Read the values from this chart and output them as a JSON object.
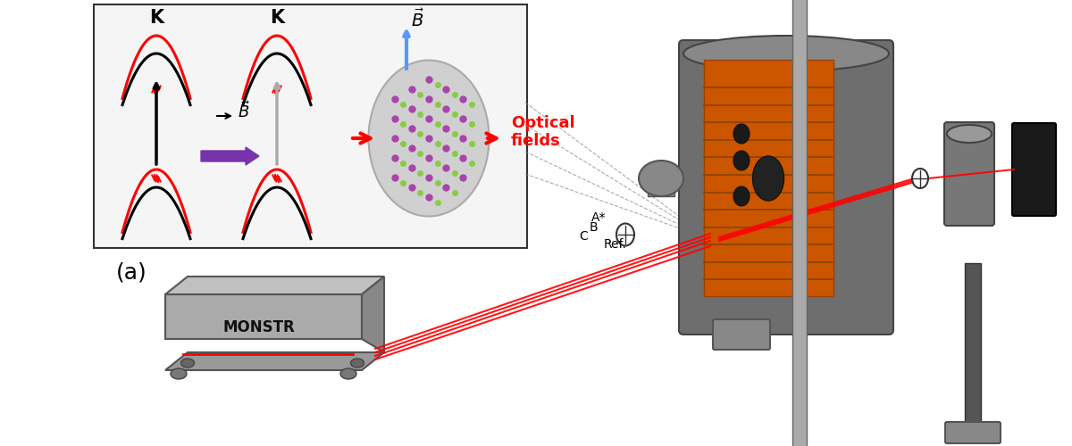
{
  "background_color": "#ffffff",
  "inset_border_color": "#333333",
  "label_a": "(a)",
  "label_monstr": "MONSTR",
  "label_optical_fields": "Optical\nfields",
  "labels_beams": [
    "A*",
    "B",
    "C",
    "Ref."
  ],
  "beam_color": "#cc0000",
  "arrow_color_blue": "#4499ff",
  "arrow_color_purple": "#7733aa",
  "arrow_color_black": "#111111",
  "arrow_color_gray": "#aaaaaa",
  "optical_fields_color": "#cc0000",
  "dashed_line_color": "#888888",
  "magnet_outer_color": "#666666",
  "magnet_inner_color": "#cc5500",
  "monstr_color": "#aaaaaa",
  "purple_arrow": "#7733aa",
  "blue_arrow": "#5599ff",
  "crystal_purple": "#aa44aa",
  "crystal_green": "#88cc44"
}
